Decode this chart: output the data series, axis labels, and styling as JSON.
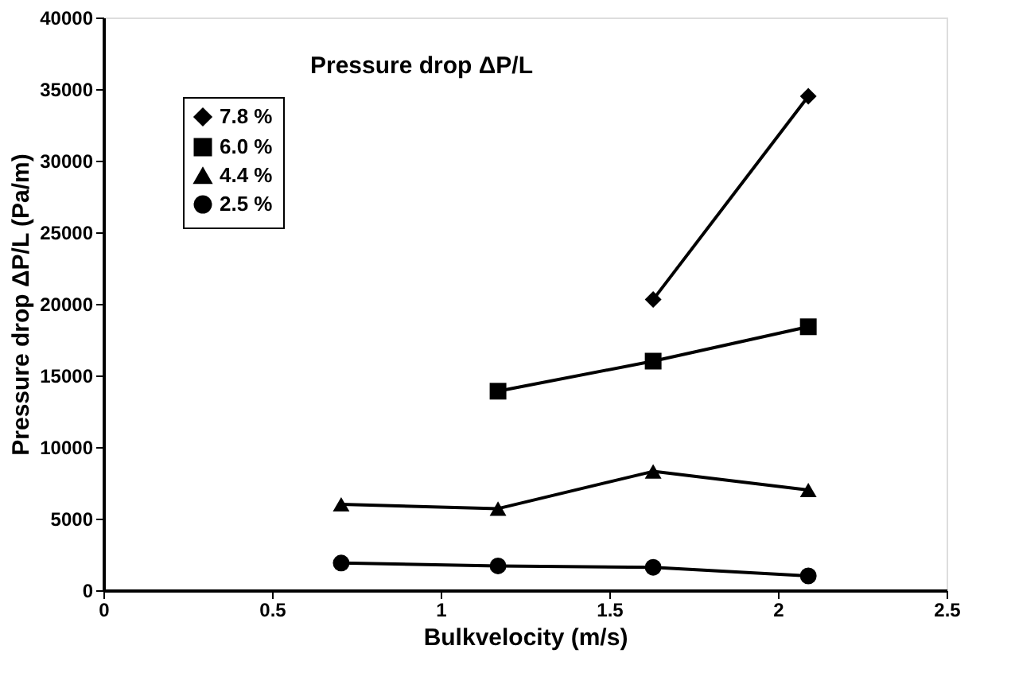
{
  "chart_data": {
    "type": "line",
    "title": "Pressure drop  ΔP/L",
    "xlabel": "Bulkvelocity (m/s)",
    "ylabel": "Pressure drop ΔP/L (Pa/m)",
    "x": [
      0.705,
      1.17,
      1.63,
      2.09
    ],
    "series": [
      {
        "name": "7.8 %",
        "color": "#000000",
        "marker": "diamond",
        "values": [
          null,
          null,
          20300,
          34500
        ]
      },
      {
        "name": "6.0 %",
        "color": "#000000",
        "marker": "square",
        "values": [
          null,
          13900,
          16000,
          18400
        ]
      },
      {
        "name": "4.4 %",
        "color": "#000000",
        "marker": "triangle",
        "values": [
          6000,
          5700,
          8300,
          7000
        ]
      },
      {
        "name": "2.5 %",
        "color": "#000000",
        "marker": "circle",
        "values": [
          1900,
          1700,
          1600,
          1000
        ]
      }
    ],
    "xlim": [
      0,
      2.5
    ],
    "xticks": [
      0,
      0.5,
      1,
      1.5,
      2,
      2.5
    ],
    "ylim": [
      0,
      40000
    ],
    "yticks": [
      0,
      5000,
      10000,
      15000,
      20000,
      25000,
      30000,
      35000,
      40000
    ],
    "grid": false,
    "legend": "top left",
    "line_style": "solid"
  }
}
